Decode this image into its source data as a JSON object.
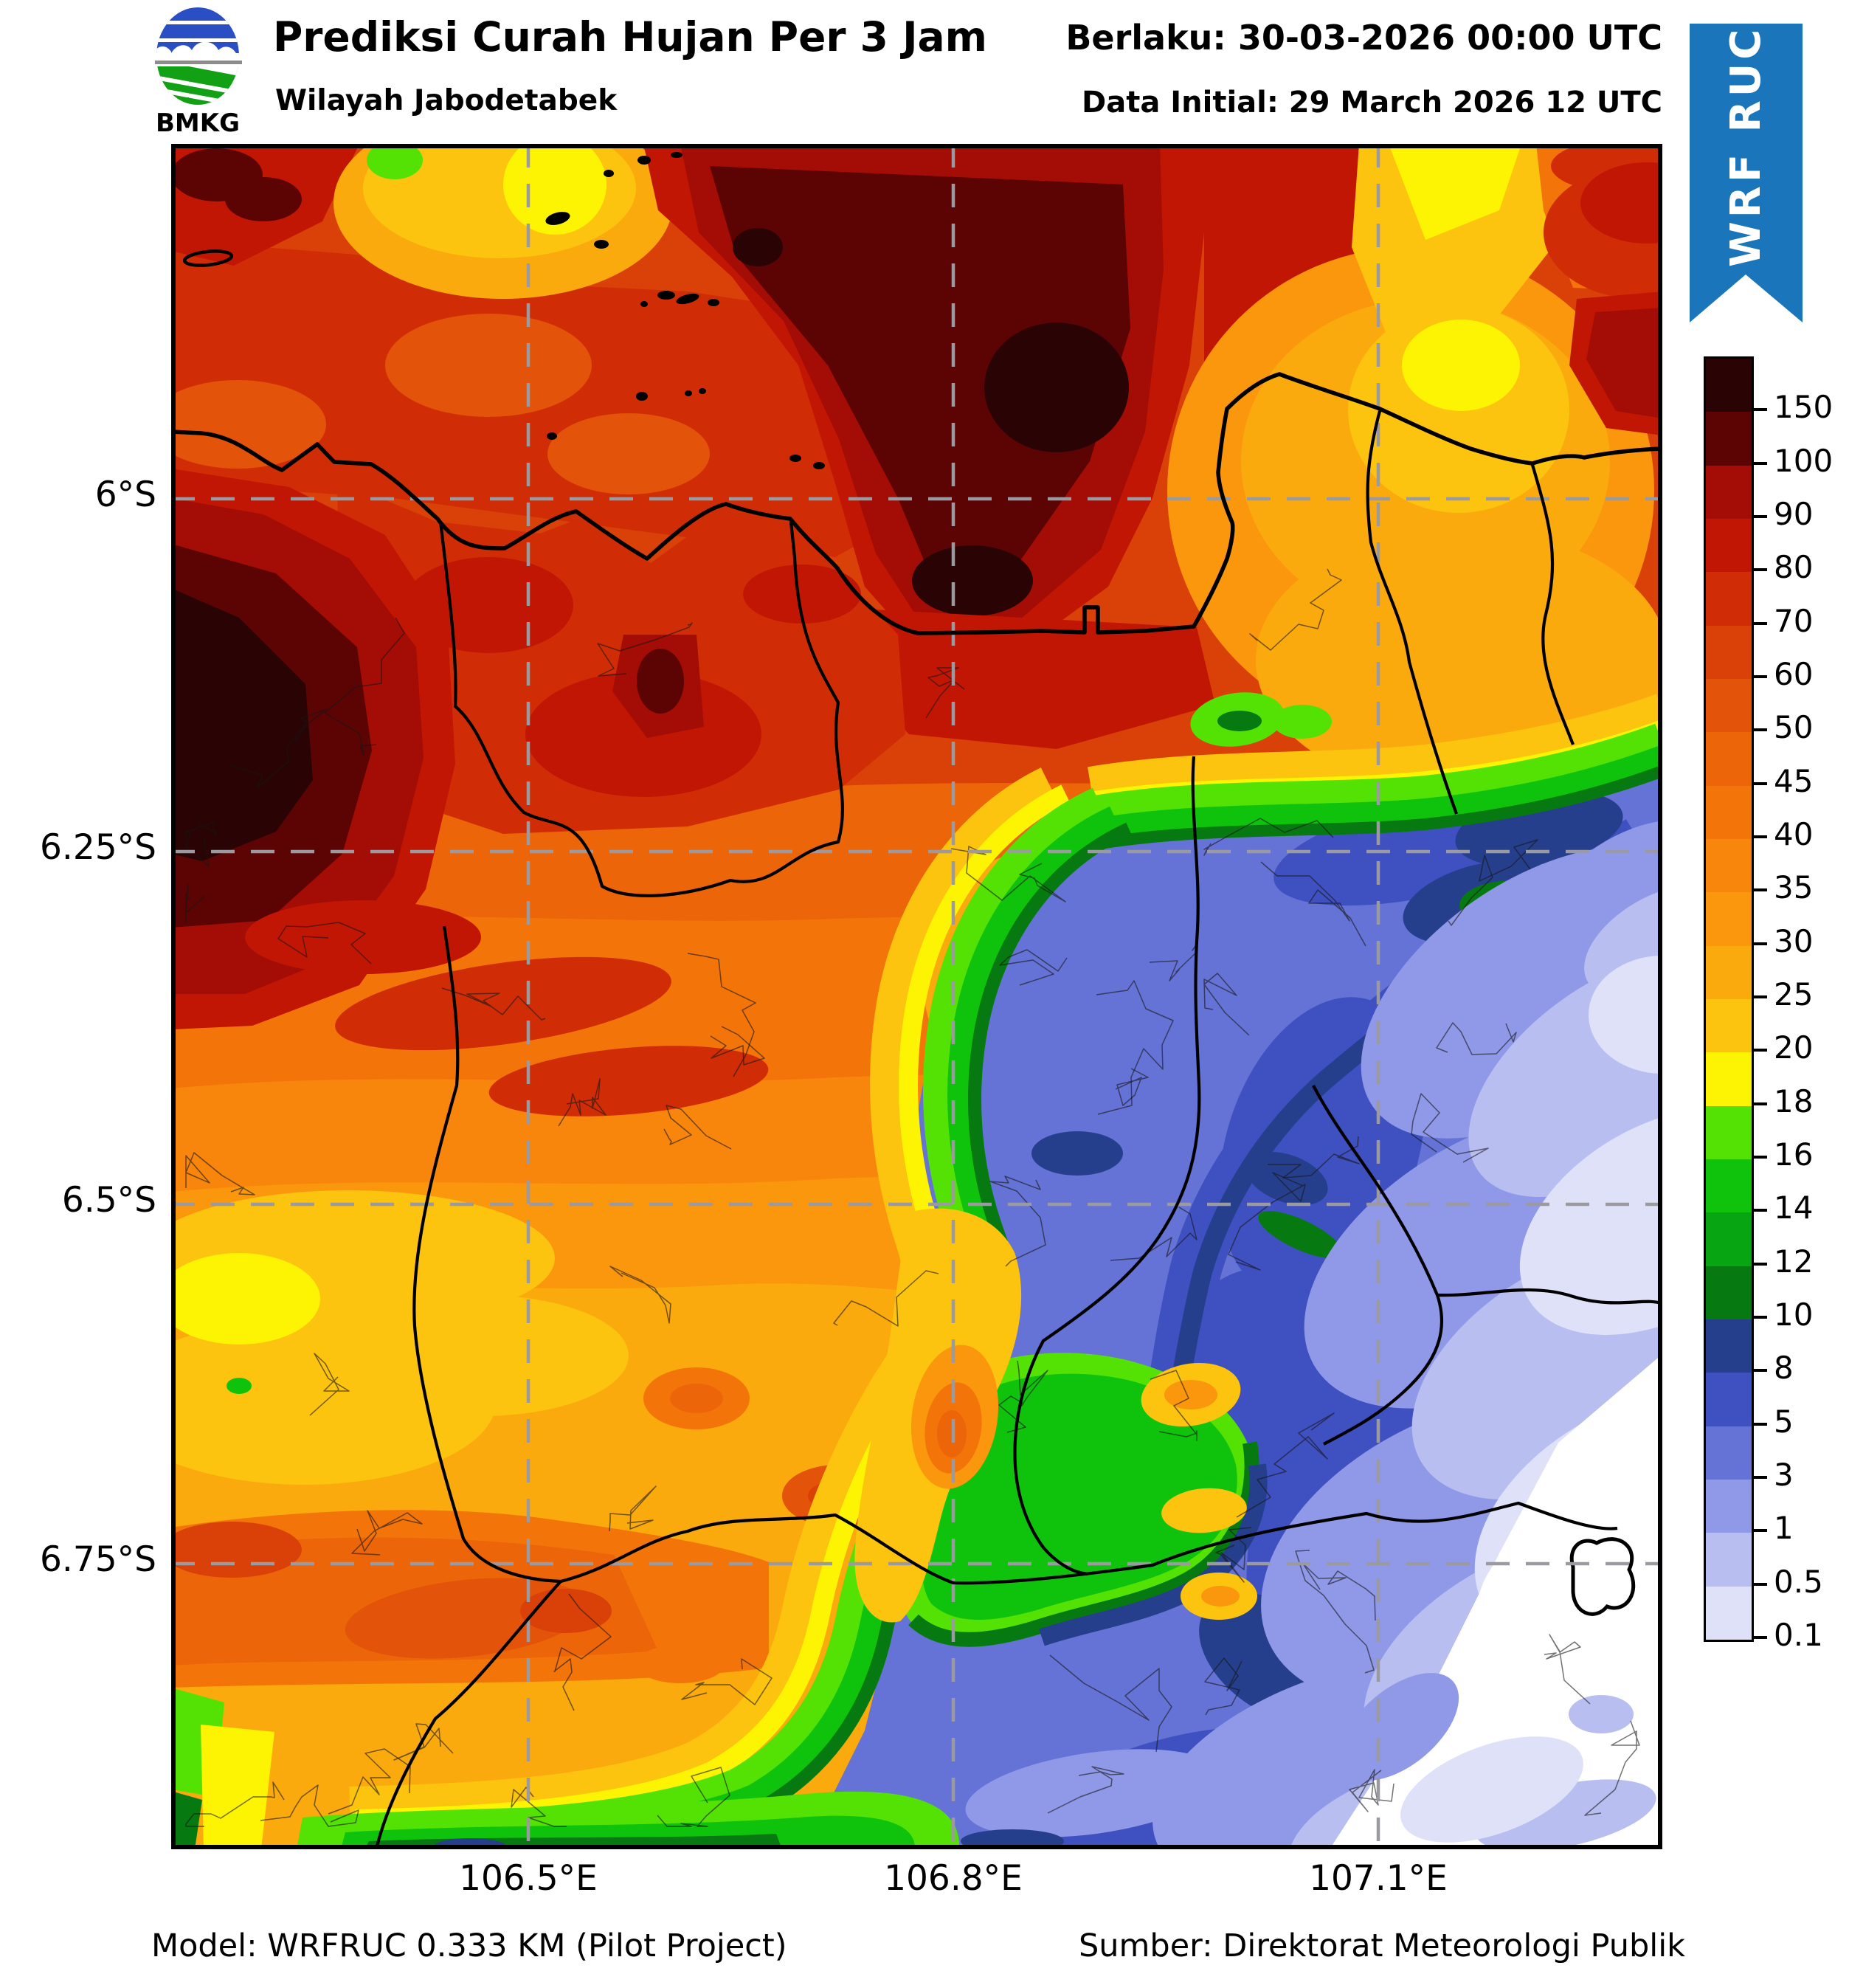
{
  "header": {
    "logo_text": "BMKG",
    "title": "Prediksi Curah Hujan Per 3 Jam",
    "subtitle": "Wilayah Jabodetabek",
    "valid_text": "Berlaku: 30-03-2026 00:00 UTC",
    "initial_text": "Data Initial: 29 March 2026 12 UTC"
  },
  "ribbon": {
    "label": "WRF RUC",
    "color": "#1a75bb"
  },
  "map": {
    "x_tick_labels": [
      "106.5°E",
      "106.8°E",
      "107.1°E"
    ],
    "y_tick_labels": [
      "6°S",
      "6.25°S",
      "6.5°S",
      "6.75°S"
    ]
  },
  "colorbar": {
    "tick_labels": [
      "150",
      "100",
      "90",
      "80",
      "70",
      "60",
      "50",
      "45",
      "40",
      "35",
      "30",
      "25",
      "20",
      "18",
      "16",
      "14",
      "12",
      "10",
      "8",
      "5",
      "3",
      "1",
      "0.5",
      "0.1"
    ],
    "segment_colors_top_to_bottom": [
      "#2a0404",
      "#5c0404",
      "#a30d05",
      "#c21605",
      "#d02d07",
      "#d94108",
      "#e35309",
      "#ec6509",
      "#f3750a",
      "#f8860c",
      "#fa970d",
      "#fbaa0e",
      "#fcc30f",
      "#fdf403",
      "#54e205",
      "#0fc30c",
      "#07a512",
      "#067a10",
      "#263f8c",
      "#3f50c0",
      "#6573d6",
      "#9099e8",
      "#b9bef1",
      "#dfe1f8"
    ]
  },
  "footer": {
    "model_text": "Model: WRFRUC 0.333 KM (Pilot Project)",
    "source_text": "Sumber: Direktorat Meteorologi Publik"
  }
}
